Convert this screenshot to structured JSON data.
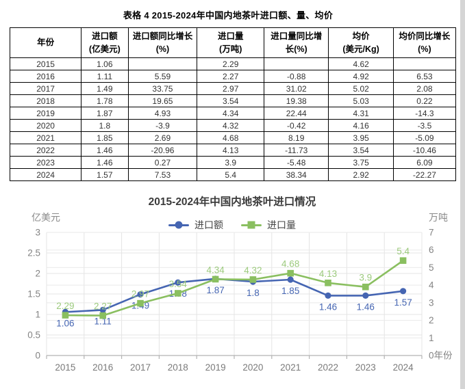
{
  "doc": {
    "title": "表格 4 2015-2024年中国内地茶叶进口额、量、均价"
  },
  "table": {
    "headers": [
      "年份",
      "进口额\n(亿美元)",
      "进口额同比增长\n(%)",
      "进口量\n(万吨)",
      "进口量同比增\n长(%)",
      "均价\n(美元/Kg)",
      "均价同比增长\n(%)"
    ],
    "rows": [
      [
        "2015",
        "1.06",
        "",
        "2.29",
        "",
        "4.62",
        ""
      ],
      [
        "2016",
        "1.11",
        "5.59",
        "2.27",
        "-0.88",
        "4.92",
        "6.53"
      ],
      [
        "2017",
        "1.49",
        "33.75",
        "2.97",
        "31.02",
        "5.02",
        "2.08"
      ],
      [
        "2018",
        "1.78",
        "19.65",
        "3.54",
        "19.38",
        "5.03",
        "0.22"
      ],
      [
        "2019",
        "1.87",
        "4.93",
        "4.34",
        "22.44",
        "4.31",
        "-14.3"
      ],
      [
        "2020",
        "1.8",
        "-3.9",
        "4.32",
        "-0.42",
        "4.16",
        "-3.5"
      ],
      [
        "2021",
        "1.85",
        "2.69",
        "4.68",
        "8.19",
        "3.95",
        "-5.09"
      ],
      [
        "2022",
        "1.46",
        "-20.96",
        "4.13",
        "-11.73",
        "3.54",
        "-10.46"
      ],
      [
        "2023",
        "1.46",
        "0.27",
        "3.9",
        "-5.48",
        "3.75",
        "6.09"
      ],
      [
        "2024",
        "1.57",
        "7.53",
        "5.4",
        "38.34",
        "2.92",
        "-22.27"
      ]
    ]
  },
  "chart_data": {
    "type": "line",
    "title": "2015-2024年中国内地茶叶进口情况",
    "categories": [
      "2015",
      "2016",
      "2017",
      "2018",
      "2019",
      "2020",
      "2021",
      "2022",
      "2023",
      "2024"
    ],
    "series": [
      {
        "key": "import-value",
        "name": "进口额",
        "axis": "left",
        "marker": "circle",
        "color": "#4565b2",
        "label_color": "#4565b2",
        "label_position": "below",
        "values": [
          1.06,
          1.11,
          1.49,
          1.78,
          1.87,
          1.8,
          1.85,
          1.46,
          1.46,
          1.57
        ]
      },
      {
        "key": "import-volume",
        "name": "进口量",
        "axis": "right",
        "marker": "square",
        "color": "#8abf60",
        "label_color": "#9cca7d",
        "label_position": "above",
        "values": [
          2.29,
          2.27,
          2.97,
          3.54,
          4.34,
          4.32,
          4.68,
          4.13,
          3.9,
          5.4
        ]
      }
    ],
    "left_axis": {
      "label": "亿美元",
      "min": 0,
      "max": 3,
      "tick_step": 0.5
    },
    "right_axis": {
      "label": "万吨",
      "min": 0,
      "max": 7,
      "tick_step": 1
    },
    "x_axis_label": "年份",
    "grid": true,
    "legend_position": "top-center"
  }
}
